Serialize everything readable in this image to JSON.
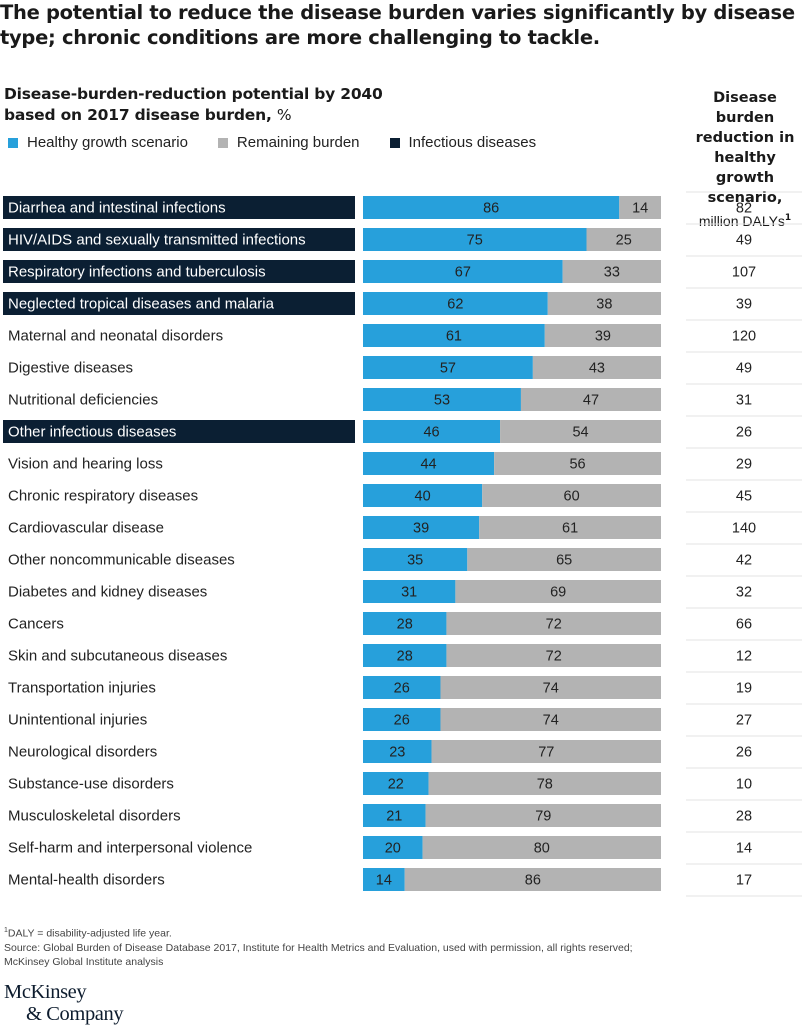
{
  "title": "The potential to reduce the disease burden varies significantly by disease type; chronic conditions are more challenging to tackle.",
  "subtitle": {
    "line1": "Disease-burden-reduction potential by 2040",
    "line2": "based on 2017  disease burden,",
    "unit": "%"
  },
  "legend": [
    {
      "label": "Healthy growth scenario",
      "color": "#27a0db"
    },
    {
      "label": "Remaining burden",
      "color": "#b3b3b3"
    },
    {
      "label": "Infectious diseases",
      "color": "#0b1f33"
    }
  ],
  "table_header": {
    "bold": "Disease burden reduction in healthy growth scenario,",
    "unit": "million DALYs",
    "footnote_ref": "1"
  },
  "colors": {
    "healthy": "#27a0db",
    "remaining": "#b3b3b3",
    "infectious_band": "#0b1f33",
    "infectious_text": "#ffffff",
    "separator": "#e3e3e3"
  },
  "chart_data": {
    "type": "bar",
    "orientation": "horizontal",
    "stacked": true,
    "title": "Disease-burden-reduction potential by 2040 based on 2017 disease burden, %",
    "xlabel": "",
    "ylabel": "",
    "xlim": [
      0,
      100
    ],
    "grid": false,
    "legend_position": "top-left",
    "categories": [
      "Diarrhea and intestinal infections",
      "HIV/AIDS and sexually transmitted infections",
      "Respiratory infections and tuberculosis",
      "Neglected tropical diseases and malaria",
      "Maternal and neonatal disorders",
      "Digestive diseases",
      "Nutritional deficiencies",
      "Other infectious diseases",
      "Vision and hearing loss",
      "Chronic respiratory diseases",
      "Cardiovascular disease",
      "Other noncommunicable diseases",
      "Diabetes and kidney diseases",
      "Cancers",
      "Skin and subcutaneous diseases",
      "Transportation injuries",
      "Unintentional injuries",
      "Neurological disorders",
      "Substance-use disorders",
      "Musculoskeletal disorders",
      "Self-harm and interpersonal violence",
      "Mental-health disorders"
    ],
    "infectious": [
      true,
      true,
      true,
      true,
      false,
      false,
      false,
      true,
      false,
      false,
      false,
      false,
      false,
      false,
      false,
      false,
      false,
      false,
      false,
      false,
      false,
      false
    ],
    "series": [
      {
        "name": "Healthy growth scenario",
        "values": [
          86,
          75,
          67,
          62,
          61,
          57,
          53,
          46,
          44,
          40,
          39,
          35,
          31,
          28,
          28,
          26,
          26,
          23,
          22,
          21,
          20,
          14
        ]
      },
      {
        "name": "Remaining burden",
        "values": [
          14,
          25,
          33,
          38,
          39,
          43,
          47,
          54,
          56,
          60,
          61,
          65,
          69,
          72,
          72,
          74,
          74,
          77,
          78,
          79,
          80,
          86
        ]
      }
    ],
    "side_table": {
      "title": "Disease burden reduction in healthy growth scenario, million DALYs",
      "values": [
        82,
        49,
        107,
        39,
        120,
        49,
        31,
        26,
        29,
        45,
        140,
        42,
        32,
        66,
        12,
        19,
        27,
        26,
        10,
        28,
        14,
        17
      ]
    }
  },
  "footnotes": {
    "note_marker": "1",
    "note": "DALY = disability-adjusted life year.",
    "source_line1": "Source: Global Burden of Disease Database 2017, Institute for Health Metrics and Evaluation, used with permission, all rights reserved;",
    "source_line2": "McKinsey Global Institute analysis"
  },
  "logo": {
    "line1": "McKinsey",
    "line2": "& Company"
  }
}
